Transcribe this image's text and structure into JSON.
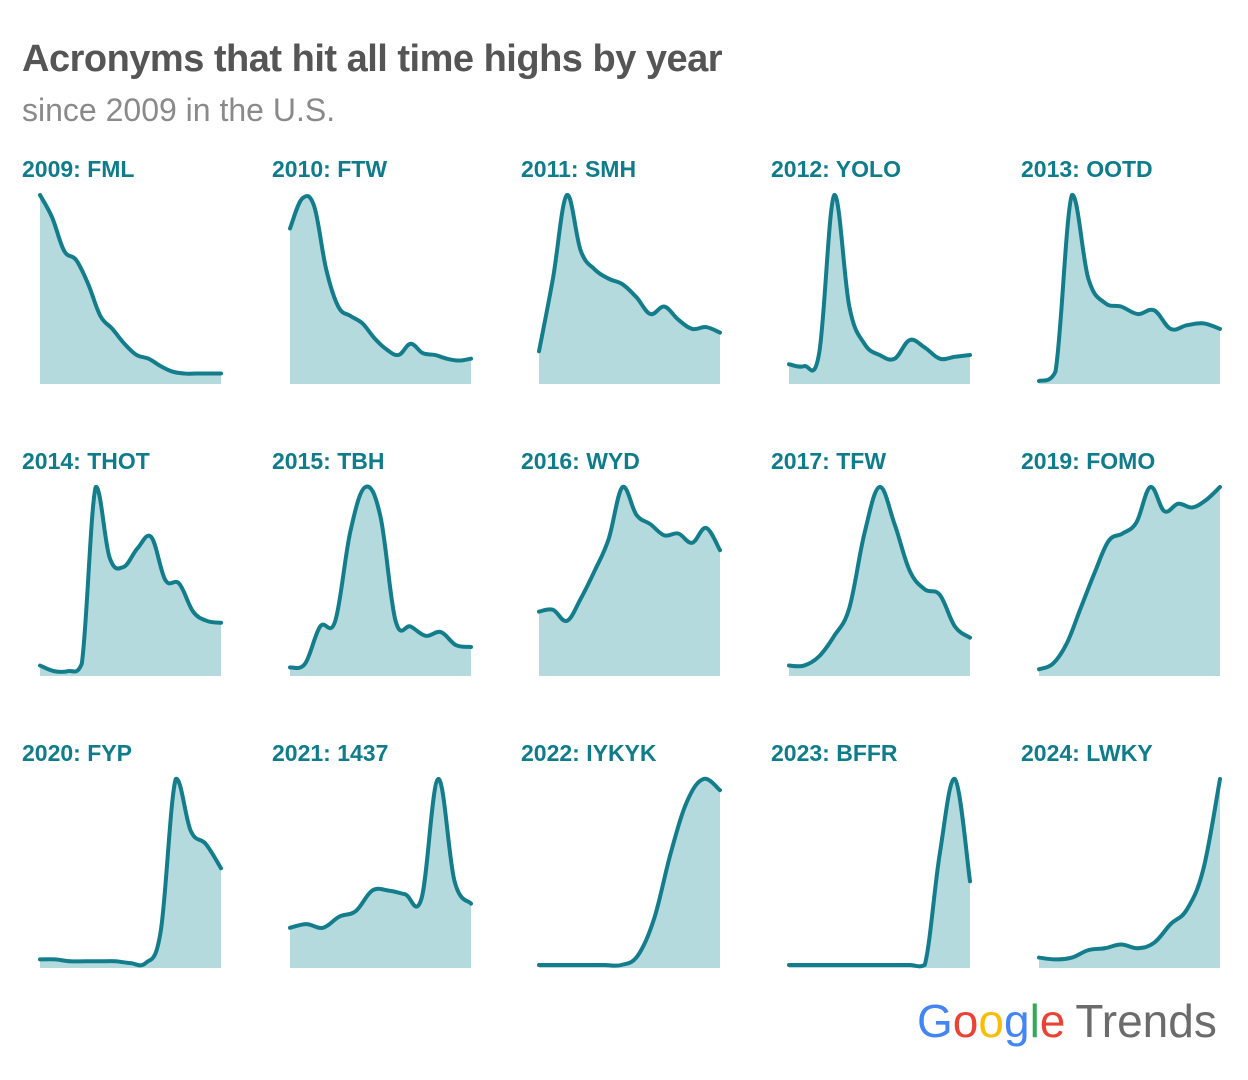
{
  "title": "Acronyms that hit all time highs by year",
  "subtitle": "since 2009 in the U.S.",
  "logo": {
    "brand": "Google",
    "product": "Trends"
  },
  "colors": {
    "line": "#137d8c",
    "fill": "#b4dade",
    "label": "#0f7c8c"
  },
  "chart_data": [
    {
      "type": "area",
      "title": "2009: FML",
      "ylim": [
        0,
        100
      ],
      "values": [
        100,
        88,
        70,
        65,
        52,
        35,
        28,
        20,
        14,
        12,
        8,
        5,
        4,
        4,
        4,
        4
      ]
    },
    {
      "type": "area",
      "title": "2010: FTW",
      "ylim": [
        0,
        100
      ],
      "values": [
        82,
        98,
        94,
        60,
        40,
        35,
        31,
        23,
        17,
        14,
        20,
        15,
        14,
        12,
        11,
        12
      ]
    },
    {
      "type": "area",
      "title": "2011: SMH",
      "ylim": [
        0,
        100
      ],
      "values": [
        16,
        55,
        100,
        70,
        60,
        55,
        52,
        45,
        36,
        40,
        33,
        28,
        29,
        26
      ]
    },
    {
      "type": "area",
      "title": "2012: YOLO",
      "ylim": [
        0,
        100
      ],
      "values": [
        9,
        8,
        15,
        100,
        40,
        20,
        14,
        12,
        22,
        18,
        12,
        13,
        14
      ]
    },
    {
      "type": "area",
      "title": "2013: OOTD",
      "ylim": [
        0,
        100
      ],
      "values": [
        0,
        5,
        100,
        55,
        42,
        40,
        36,
        38,
        28,
        30,
        31,
        28
      ]
    },
    {
      "type": "area",
      "title": "2014: THOT",
      "ylim": [
        0,
        100
      ],
      "values": [
        4,
        1,
        1,
        5,
        100,
        62,
        57,
        67,
        73,
        50,
        48,
        33,
        28,
        27
      ]
    },
    {
      "type": "area",
      "title": "2015: TBH",
      "ylim": [
        0,
        100
      ],
      "values": [
        3,
        5,
        25,
        28,
        76,
        100,
        84,
        28,
        25,
        20,
        22,
        15,
        14
      ]
    },
    {
      "type": "area",
      "title": "2016: WYD",
      "ylim": [
        0,
        100
      ],
      "values": [
        33,
        34,
        28,
        40,
        55,
        72,
        100,
        85,
        80,
        74,
        75,
        70,
        78,
        66
      ]
    },
    {
      "type": "area",
      "title": "2017: TFW",
      "ylim": [
        0,
        100
      ],
      "values": [
        4,
        4,
        9,
        20,
        35,
        75,
        100,
        80,
        55,
        45,
        42,
        25,
        19
      ]
    },
    {
      "type": "area",
      "title": "2019: FOMO",
      "ylim": [
        0,
        100
      ],
      "values": [
        2,
        5,
        16,
        35,
        54,
        71,
        75,
        81,
        100,
        87,
        91,
        89,
        93,
        100
      ]
    },
    {
      "type": "area",
      "title": "2020: FYP",
      "ylim": [
        0,
        100
      ],
      "values": [
        3,
        3,
        2,
        2,
        2,
        2,
        1,
        1,
        18,
        100,
        72,
        65,
        52
      ]
    },
    {
      "type": "area",
      "title": "2021: 1437",
      "ylim": [
        0,
        100
      ],
      "values": [
        20,
        22,
        20,
        26,
        29,
        40,
        40,
        38,
        36,
        100,
        45,
        33
      ]
    },
    {
      "type": "area",
      "title": "2022: IYKYK",
      "ylim": [
        0,
        100
      ],
      "values": [
        0,
        0,
        0,
        0,
        0,
        0,
        5,
        25,
        60,
        88,
        100,
        94
      ]
    },
    {
      "type": "area",
      "title": "2023: BFFR",
      "ylim": [
        0,
        100
      ],
      "values": [
        0,
        0,
        0,
        0,
        0,
        0,
        0,
        0,
        0,
        0,
        60,
        100,
        45
      ]
    },
    {
      "type": "area",
      "title": "2024: LWKY",
      "ylim": [
        0,
        100
      ],
      "values": [
        4,
        3,
        4,
        8,
        9,
        11,
        9,
        12,
        22,
        30,
        52,
        100
      ]
    }
  ]
}
